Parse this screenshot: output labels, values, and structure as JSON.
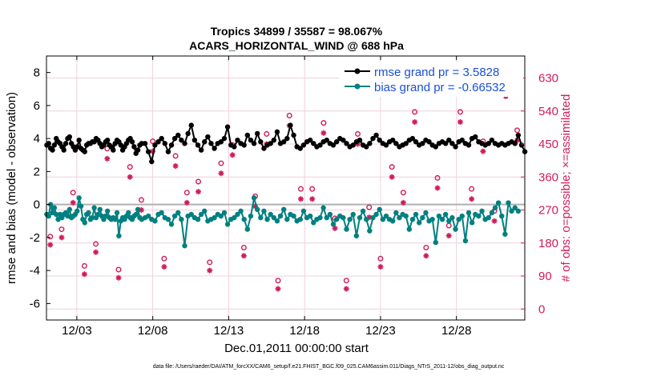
{
  "chart_data": {
    "type": "line",
    "title_line1": "Tropics 34899 / 35587 = 98.067%",
    "title_line2": "ACARS_HORIZONTAL_WIND @ 688 hPa",
    "xlabel": "Dec.01,2011 00:00:00 start",
    "ylabel_left": "rmse and bias (model - observation)",
    "ylabel_right": "# of obs: o=possible; ×=assimilated",
    "footer": "data file: /Users/raeder/DAI/ATM_forcXX/CAM6_setup/f.e21.FHIST_BGC.f09_025.CAM6assim.011/Diags_NTrS_2011-12/obs_diag_output.nc",
    "xlim": [
      0,
      31.5
    ],
    "ylim_left": [
      -7,
      9
    ],
    "ylim_right": [
      -30,
      690
    ],
    "x_ticks": [
      2,
      7,
      12,
      17,
      22,
      27
    ],
    "x_tick_labels": [
      "12/03",
      "12/08",
      "12/13",
      "12/18",
      "12/23",
      "12/28"
    ],
    "y_ticks_left": [
      -6,
      -4,
      -2,
      0,
      2,
      4,
      6,
      8
    ],
    "y_ticks_right": [
      0,
      90,
      180,
      270,
      360,
      450,
      540,
      630
    ],
    "zero_line": 0,
    "colors": {
      "rmse": "#000000",
      "bias": "#008080",
      "obs": "#d01c5a",
      "legend_text": "#1a4fd8",
      "zero_line": "#b0b0b0",
      "grid": "#f0d0dc"
    },
    "legend": [
      {
        "name": "rmse",
        "label": "rmse grand pr = 3.5828"
      },
      {
        "name": "bias",
        "label": "bias grand pr = -0.66532"
      }
    ],
    "rmse_first": [
      3.6,
      3.7,
      3.4,
      3.3,
      3.6,
      4.0,
      3.8,
      3.7,
      3.5,
      3.3,
      3.7,
      4.0,
      4.1,
      3.7,
      3.5,
      3.3,
      3.5,
      3.9,
      3.4,
      3.3,
      3.2,
      3.6,
      3.7,
      3.7,
      3.8,
      3.8,
      4.0,
      3.9,
      3.7,
      3.5,
      3.6,
      3.8,
      3.9,
      3.6,
      3.5,
      3.3,
      3.7,
      3.9,
      3.8,
      3.6,
      3.3,
      3.5,
      3.7,
      3.9,
      4.0,
      3.8,
      3.5,
      3.1,
      3.3,
      3.6
    ],
    "rmse_second": [
      3.7,
      3.7,
      3.2,
      2.6,
      3.6,
      3.8,
      4.0,
      3.7,
      3.2,
      3.6,
      4.0,
      4.2,
      3.9,
      3.7,
      4.3,
      4.8,
      3.9,
      3.6,
      3.3,
      3.8,
      4.1,
      3.7,
      3.4,
      3.7,
      3.8,
      4.0,
      4.7,
      3.6,
      3.5,
      3.9,
      3.7,
      3.6,
      4.2,
      3.9,
      3.7,
      4.3,
      3.8,
      3.4,
      3.6,
      3.7,
      3.9,
      4.4,
      3.7,
      3.8,
      4.0,
      4.8,
      4.2,
      3.5,
      3.4,
      3.6,
      3.8,
      3.9,
      3.7,
      3.5,
      3.6,
      3.8,
      3.9,
      3.7,
      3.6,
      3.8,
      4.0,
      3.9,
      3.7,
      3.5,
      3.6,
      3.8,
      3.9,
      3.6,
      3.5,
      3.7,
      4.0,
      4.2,
      3.9,
      3.7,
      3.6,
      3.8,
      3.9,
      3.7,
      3.5,
      3.6,
      3.7,
      3.9,
      4.0,
      3.8,
      3.6,
      3.7,
      3.9,
      3.8,
      3.6,
      3.5,
      3.7,
      3.8,
      3.7,
      3.9,
      3.7,
      3.5,
      3.8,
      3.9,
      3.7,
      3.6,
      4.0,
      4.1,
      3.8,
      3.7,
      3.6,
      3.7,
      3.9,
      3.7,
      3.6,
      3.7,
      3.6,
      3.7,
      3.8,
      3.7,
      4.2,
      3.6,
      3.2
    ],
    "bias_first": [
      -0.6,
      -0.7,
      0.0,
      -0.5,
      -0.2,
      -0.6,
      -0.9,
      -0.6,
      -0.8,
      -0.6,
      -0.5,
      -0.7,
      -0.3,
      -0.8,
      -0.7,
      -0.6,
      -0.4,
      0.4,
      -0.1,
      -0.9,
      -1.1,
      -0.6,
      -0.5,
      -0.9,
      -0.8,
      -0.2,
      -0.8,
      -0.6,
      -0.3,
      -0.7,
      -0.9,
      -0.7,
      -0.4,
      -0.8,
      -0.9,
      -0.8,
      -0.9,
      -0.5,
      -1.9,
      -1.0,
      -0.8,
      -0.9,
      -0.7,
      -0.5,
      -0.8,
      -0.9,
      -0.7,
      -0.6,
      -0.3,
      -0.8
    ],
    "bias_second": [
      -0.9,
      -0.8,
      -0.7,
      -0.9,
      -1.0,
      -0.6,
      -0.5,
      -0.8,
      -0.9,
      -1.2,
      -0.7,
      -0.5,
      -0.9,
      -2.5,
      -0.7,
      -0.6,
      -0.8,
      -0.9,
      -0.6,
      -0.4,
      -1.0,
      -0.9,
      -0.8,
      -0.6,
      -0.7,
      -0.5,
      -1.2,
      -0.9,
      -0.8,
      -0.6,
      -0.4,
      -0.9,
      -1.5,
      -0.7,
      0.4,
      -0.3,
      -0.8,
      -0.4,
      -0.9,
      -0.6,
      -0.8,
      -1.0,
      -0.7,
      -0.3,
      -0.9,
      -0.6,
      -0.7,
      -1.0,
      -0.9,
      -0.4,
      -0.8,
      -0.7,
      -1.1,
      -0.9,
      -0.8,
      -0.2,
      -0.8,
      -0.6,
      -1.2,
      -0.9,
      -0.7,
      -0.8,
      -1.5,
      -0.9,
      -0.6,
      -1.9,
      -0.8,
      -0.4,
      -0.9,
      -1.6,
      -0.8,
      -0.6,
      -0.3,
      -0.9,
      -0.7,
      -0.9,
      -1.0,
      -0.5,
      -0.8,
      -0.6,
      -0.7,
      -1.5,
      -0.9,
      -0.6,
      -1.1,
      -0.8,
      -0.5,
      -1.0,
      -0.9,
      -2.3,
      -0.7,
      -0.9,
      -0.6,
      -1.0,
      -0.8,
      -1.5,
      -0.9,
      -0.7,
      -2.2,
      -0.5,
      -1.1,
      -0.6,
      -0.7,
      -0.4,
      -0.9,
      -0.8,
      -0.5,
      -0.2,
      0.1,
      -0.7,
      -1.8,
      0.1,
      -0.4,
      -0.2,
      -0.4
    ],
    "obs_possible": [
      [
        0.25,
        180
      ],
      [
        1.0,
        200
      ],
      [
        1.75,
        300
      ],
      [
        2.5,
        100
      ],
      [
        3.25,
        160
      ],
      [
        4.0,
        420
      ],
      [
        4.75,
        90
      ],
      [
        5.5,
        370
      ],
      [
        6.25,
        280
      ],
      [
        7.0,
        440
      ],
      [
        7.75,
        120
      ],
      [
        8.5,
        400
      ],
      [
        9.25,
        300
      ],
      [
        10.0,
        330
      ],
      [
        10.75,
        110
      ],
      [
        11.5,
        380
      ],
      [
        12.25,
        430
      ],
      [
        13.0,
        150
      ],
      [
        13.75,
        290
      ],
      [
        14.5,
        460
      ],
      [
        15.25,
        60
      ],
      [
        16.0,
        510
      ],
      [
        16.75,
        310
      ],
      [
        17.5,
        310
      ],
      [
        18.25,
        490
      ],
      [
        19.0,
        230
      ],
      [
        19.75,
        60
      ],
      [
        20.5,
        460
      ],
      [
        21.25,
        260
      ],
      [
        22.0,
        120
      ],
      [
        22.75,
        370
      ],
      [
        23.5,
        300
      ],
      [
        24.25,
        520
      ],
      [
        25.0,
        150
      ],
      [
        25.75,
        340
      ],
      [
        26.5,
        210
      ],
      [
        27.25,
        520
      ],
      [
        28.0,
        310
      ],
      [
        28.75,
        440
      ],
      [
        29.5,
        250
      ],
      [
        30.25,
        590
      ],
      [
        31.0,
        470
      ]
    ],
    "obs_assimilated": [
      [
        0.25,
        175
      ],
      [
        1.0,
        195
      ],
      [
        1.75,
        290
      ],
      [
        2.5,
        95
      ],
      [
        3.25,
        155
      ],
      [
        4.0,
        410
      ],
      [
        4.75,
        85
      ],
      [
        5.5,
        360
      ],
      [
        6.25,
        270
      ],
      [
        7.0,
        430
      ],
      [
        7.75,
        115
      ],
      [
        8.5,
        390
      ],
      [
        9.25,
        290
      ],
      [
        10.0,
        320
      ],
      [
        10.75,
        105
      ],
      [
        11.5,
        370
      ],
      [
        12.25,
        420
      ],
      [
        13.0,
        145
      ],
      [
        13.75,
        280
      ],
      [
        14.5,
        450
      ],
      [
        15.25,
        55
      ],
      [
        16.0,
        500
      ],
      [
        16.75,
        300
      ],
      [
        17.5,
        300
      ],
      [
        18.25,
        480
      ],
      [
        19.0,
        220
      ],
      [
        19.75,
        55
      ],
      [
        20.5,
        450
      ],
      [
        21.25,
        250
      ],
      [
        22.0,
        115
      ],
      [
        22.75,
        360
      ],
      [
        23.5,
        290
      ],
      [
        24.25,
        510
      ],
      [
        25.0,
        145
      ],
      [
        25.75,
        330
      ],
      [
        26.5,
        200
      ],
      [
        27.25,
        510
      ],
      [
        28.0,
        300
      ],
      [
        28.75,
        430
      ],
      [
        29.5,
        240
      ],
      [
        30.25,
        580
      ],
      [
        31.0,
        460
      ]
    ]
  }
}
